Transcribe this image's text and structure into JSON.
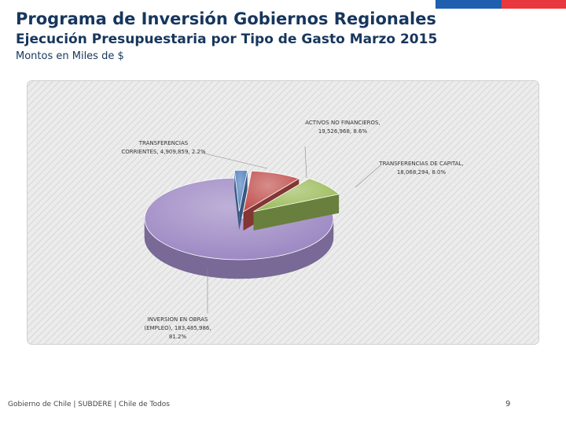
{
  "header": {
    "title": "Programa de Inversión Gobiernos Regionales",
    "subtitle": "Ejecución Presupuestaria por Tipo de Gasto Marzo 2015",
    "units": "Montos en Miles de $"
  },
  "footer": {
    "text": "Gobierno de Chile | SUBDERE | Chile de Todos",
    "page_number": "9"
  },
  "colors": {
    "flag_blue": "#1f5fb0",
    "flag_red": "#e8383d",
    "title": "#17365d"
  },
  "chart_data": {
    "type": "pie",
    "style": "3d-exploded",
    "unit": "Miles de $",
    "slices": [
      {
        "label": "INVERSION EN OBRAS (EMPLEO)",
        "value": 183485986,
        "percent": 81.2,
        "color": "#9b86c2",
        "label_lines": [
          "INVERSION EN OBRAS",
          "(EMPLEO), 183,485,986,",
          "81.2%"
        ]
      },
      {
        "label": "TRANSFERENCIAS CORRIENTES",
        "value": 4909859,
        "percent": 2.2,
        "color": "#4f81bd",
        "label_lines": [
          "TRANSFERENCIAS",
          "CORRIENTES, 4,909,859, 2.2%"
        ]
      },
      {
        "label": "ACTIVOS NO FINANCIEROS",
        "value": 19526968,
        "percent": 8.6,
        "color": "#c0504d",
        "label_lines": [
          "ACTIVOS NO FINANCIEROS,",
          "19,526,968, 8.6%"
        ]
      },
      {
        "label": "TRANSFERENCIAS DE CAPITAL",
        "value": 18068294,
        "percent": 8.0,
        "color": "#9bbb59",
        "label_lines": [
          "TRANSFERENCIAS DE CAPITAL,",
          "18,068,294, 8.0%"
        ]
      }
    ]
  }
}
